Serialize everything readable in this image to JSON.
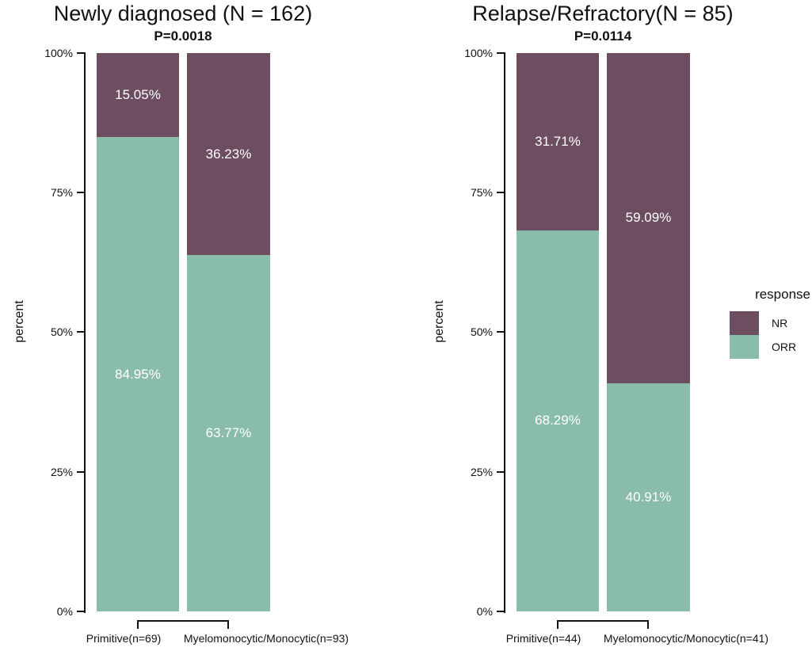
{
  "colors": {
    "nr": "#6d4d60",
    "orr": "#8abcab",
    "axis": "#111111",
    "bar_label_text": "#ffffff",
    "background": "#ffffff"
  },
  "legend": {
    "title": "response",
    "items": [
      {
        "label": "NR",
        "color_key": "nr"
      },
      {
        "label": "ORR",
        "color_key": "orr"
      }
    ],
    "position": "right-outside-middle"
  },
  "chart_data": [
    {
      "type": "bar",
      "subtype": "stacked-percent",
      "title": "Newly diagnosed (N = 162)",
      "p_value": "P=0.0018",
      "xlabel": "",
      "ylabel": "percent",
      "ylim": [
        0,
        100
      ],
      "yticks": [
        "100%",
        "75%",
        "50%",
        "25%",
        "0%"
      ],
      "grid": false,
      "categories": [
        "Primitive(n=69)",
        "Myelomonocytic/Monocytic(n=93)"
      ],
      "series": [
        {
          "name": "NR",
          "color_key": "nr",
          "values": [
            15.05,
            36.23
          ],
          "labels": [
            "15.05%",
            "36.23%"
          ]
        },
        {
          "name": "ORR",
          "color_key": "orr",
          "values": [
            84.95,
            63.77
          ],
          "labels": [
            "84.95%",
            "63.77%"
          ]
        }
      ]
    },
    {
      "type": "bar",
      "subtype": "stacked-percent",
      "title": "Relapse/Refractory(N = 85)",
      "p_value": "P=0.0114",
      "xlabel": "",
      "ylabel": "percent",
      "ylim": [
        0,
        100
      ],
      "yticks": [
        "100%",
        "75%",
        "50%",
        "25%",
        "0%"
      ],
      "grid": false,
      "categories": [
        "Primitive(n=44)",
        "Myelomonocytic/Monocytic(n=41)"
      ],
      "series": [
        {
          "name": "NR",
          "color_key": "nr",
          "values": [
            31.71,
            59.09
          ],
          "labels": [
            "31.71%",
            "59.09%"
          ]
        },
        {
          "name": "ORR",
          "color_key": "orr",
          "values": [
            68.29,
            40.91
          ],
          "labels": [
            "68.29%",
            "40.91%"
          ]
        }
      ]
    }
  ]
}
